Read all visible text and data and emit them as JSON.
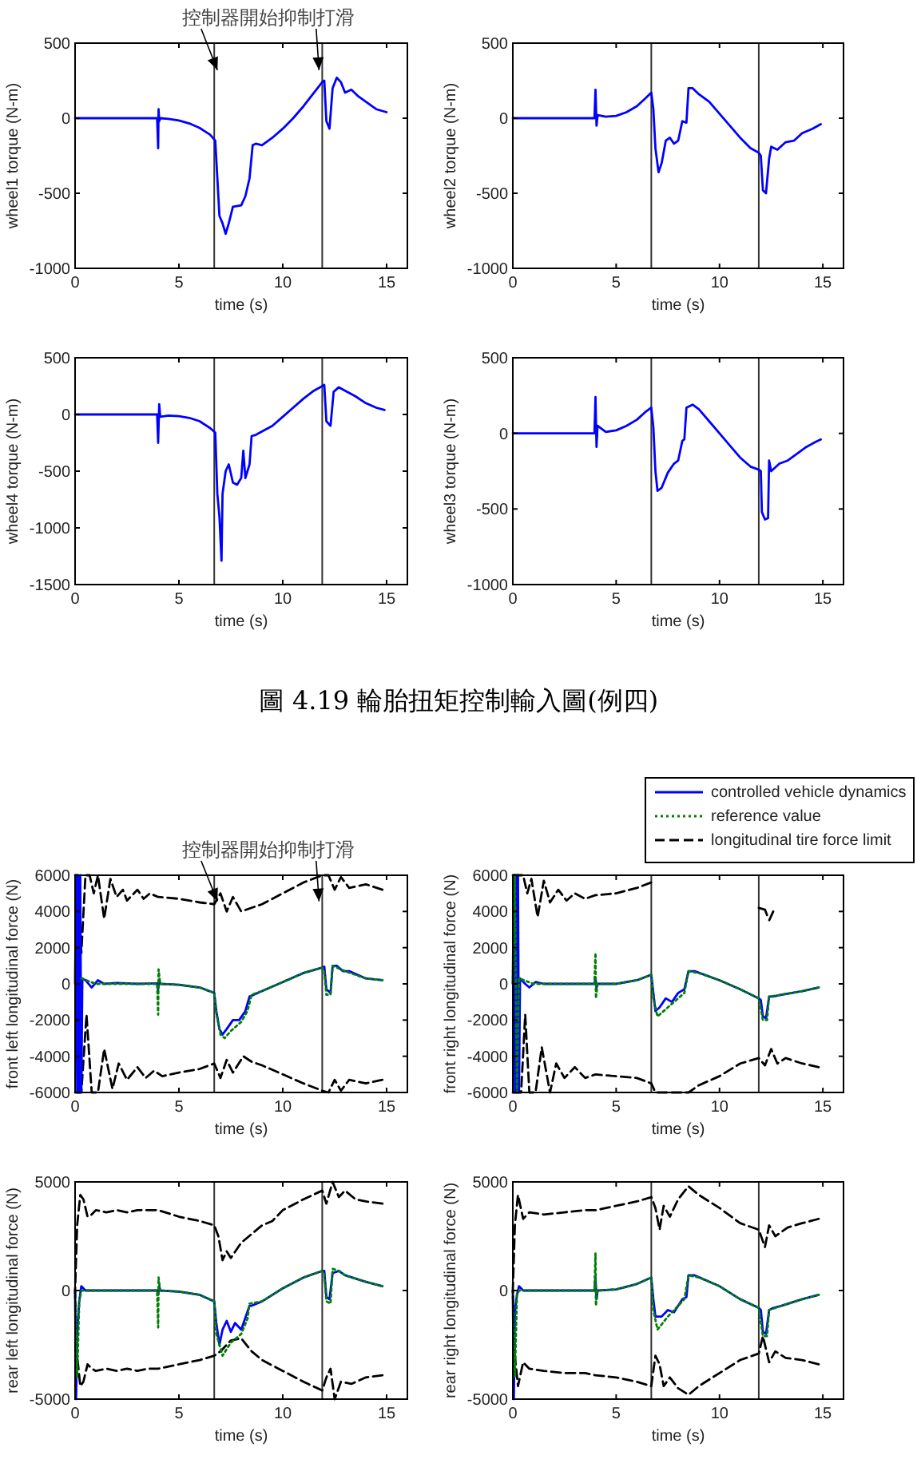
{
  "chart_data": [
    {
      "type": "line",
      "xlabel": "time (s)",
      "ylabel": "wheel1 torque (N-m)",
      "xlim": [
        0,
        16
      ],
      "ylim": [
        -1000,
        500
      ],
      "xticks": [
        0,
        5,
        10,
        15
      ],
      "yticks": [
        -1000,
        -500,
        0,
        500
      ],
      "ref_lines": [
        {
          "axis": "x",
          "value": 6.7,
          "color": "#333333"
        },
        {
          "axis": "x",
          "value": 11.9,
          "color": "#333333"
        }
      ],
      "annotations": [
        "控制器開始抑制打滑"
      ],
      "series": [
        {
          "color": "#0000ff",
          "x": [
            0,
            3.95,
            4.0,
            4.02,
            4.05,
            4.1,
            4.5,
            5,
            5.5,
            6,
            6.5,
            6.75,
            6.85,
            6.95,
            7.1,
            7.25,
            7.4,
            7.6,
            8,
            8.2,
            8.4,
            8.55,
            8.7,
            9,
            9.5,
            10,
            10.5,
            11,
            11.5,
            11.9,
            12.0,
            12.1,
            12.25,
            12.4,
            12.6,
            12.8,
            13,
            13.3,
            13.6,
            14,
            14.5,
            15
          ],
          "values": [
            0,
            0,
            -200,
            60,
            -20,
            0,
            -5,
            -15,
            -35,
            -65,
            -110,
            -150,
            -400,
            -650,
            -700,
            -770,
            -700,
            -590,
            -580,
            -520,
            -400,
            -180,
            -170,
            -180,
            -130,
            -70,
            0,
            80,
            170,
            240,
            250,
            -20,
            -70,
            200,
            270,
            240,
            170,
            190,
            150,
            110,
            60,
            40
          ]
        }
      ]
    },
    {
      "type": "line",
      "xlabel": "time (s)",
      "ylabel": "wheel2 torque (N-m)",
      "xlim": [
        0,
        16
      ],
      "ylim": [
        -1000,
        500
      ],
      "xticks": [
        0,
        5,
        10,
        15
      ],
      "yticks": [
        -1000,
        -500,
        0,
        500
      ],
      "ref_lines": [
        {
          "axis": "x",
          "value": 6.7,
          "color": "#333333"
        },
        {
          "axis": "x",
          "value": 11.9,
          "color": "#333333"
        }
      ],
      "series": [
        {
          "color": "#0000ff",
          "x": [
            0,
            3.95,
            4.0,
            4.05,
            4.1,
            4.5,
            5,
            5.5,
            6,
            6.4,
            6.7,
            6.8,
            6.9,
            7.05,
            7.2,
            7.4,
            7.6,
            7.8,
            8.0,
            8.2,
            8.4,
            8.5,
            8.7,
            9,
            9.5,
            10,
            10.5,
            11,
            11.5,
            11.9,
            12.0,
            12.1,
            12.25,
            12.4,
            12.5,
            12.8,
            13.2,
            13.6,
            14,
            14.5,
            14.9
          ],
          "values": [
            0,
            0,
            190,
            -50,
            20,
            10,
            15,
            40,
            80,
            130,
            170,
            60,
            -200,
            -360,
            -300,
            -150,
            -130,
            -170,
            -150,
            -20,
            -30,
            200,
            200,
            160,
            110,
            30,
            -50,
            -130,
            -200,
            -230,
            -250,
            -480,
            -500,
            -270,
            -190,
            -210,
            -160,
            -150,
            -100,
            -70,
            -40
          ]
        }
      ]
    },
    {
      "type": "line",
      "xlabel": "time (s)",
      "ylabel": "wheel4 torque (N-m)",
      "xlim": [
        0,
        16
      ],
      "ylim": [
        -1500,
        500
      ],
      "xticks": [
        0,
        5,
        10,
        15
      ],
      "yticks": [
        -1500,
        -1000,
        -500,
        0,
        500
      ],
      "ref_lines": [
        {
          "axis": "x",
          "value": 6.7,
          "color": "#333333"
        },
        {
          "axis": "x",
          "value": 11.9,
          "color": "#333333"
        }
      ],
      "series": [
        {
          "color": "#0000ff",
          "x": [
            0,
            3.95,
            4.0,
            4.05,
            4.1,
            4.5,
            5,
            5.5,
            6,
            6.5,
            6.75,
            6.85,
            6.95,
            7.05,
            7.1,
            7.25,
            7.4,
            7.6,
            7.8,
            8,
            8.1,
            8.2,
            8.4,
            8.5,
            8.7,
            9,
            9.5,
            10,
            10.5,
            11,
            11.5,
            11.9,
            12.0,
            12.1,
            12.3,
            12.45,
            12.7,
            13,
            13.5,
            14,
            14.5,
            14.9
          ],
          "values": [
            0,
            0,
            -250,
            90,
            -20,
            -10,
            -15,
            -30,
            -60,
            -120,
            -160,
            -700,
            -900,
            -1290,
            -700,
            -500,
            -440,
            -600,
            -620,
            -560,
            -320,
            -560,
            -440,
            -190,
            -180,
            -150,
            -100,
            -20,
            60,
            140,
            210,
            250,
            260,
            -60,
            -100,
            200,
            240,
            210,
            160,
            100,
            60,
            40
          ]
        }
      ]
    },
    {
      "type": "line",
      "xlabel": "time (s)",
      "ylabel": "wheel3 torque (N-m)",
      "xlim": [
        0,
        16
      ],
      "ylim": [
        -1000,
        500
      ],
      "xticks": [
        0,
        5,
        10,
        15
      ],
      "yticks": [
        -1000,
        -500,
        0,
        500
      ],
      "ref_lines": [
        {
          "axis": "x",
          "value": 6.7,
          "color": "#333333"
        },
        {
          "axis": "x",
          "value": 11.9,
          "color": "#333333"
        }
      ],
      "annotations": [
        "圖 4.19 輪胎扭矩控制輸入圖(例四)"
      ],
      "series": [
        {
          "color": "#0000ff",
          "x": [
            0,
            3.95,
            4.0,
            4.05,
            4.1,
            4.5,
            5,
            5.5,
            6,
            6.4,
            6.7,
            6.8,
            6.9,
            7.0,
            7.2,
            7.5,
            7.8,
            8.0,
            8.2,
            8.3,
            8.4,
            8.7,
            9,
            9.5,
            10,
            10.5,
            11,
            11.5,
            11.9,
            12.0,
            12.05,
            12.2,
            12.35,
            12.4,
            12.5,
            12.9,
            13.3,
            13.7,
            14.2,
            14.6,
            14.9
          ],
          "values": [
            0,
            0,
            240,
            -90,
            50,
            10,
            20,
            50,
            90,
            140,
            170,
            40,
            -250,
            -380,
            -360,
            -260,
            -200,
            -180,
            -50,
            -40,
            170,
            190,
            160,
            80,
            0,
            -80,
            -160,
            -220,
            -240,
            -250,
            -520,
            -570,
            -560,
            -180,
            -250,
            -200,
            -180,
            -140,
            -90,
            -60,
            -40
          ]
        }
      ]
    },
    {
      "type": "line",
      "xlabel": "time (s)",
      "ylabel": "front left longitudinal force (N)",
      "xlim": [
        0,
        16
      ],
      "ylim": [
        -6000,
        6000
      ],
      "xticks": [
        0,
        5,
        10,
        15
      ],
      "yticks": [
        -6000,
        -4000,
        -2000,
        0,
        2000,
        4000,
        6000
      ],
      "ref_lines": [
        {
          "axis": "x",
          "value": 6.7,
          "color": "#333333"
        },
        {
          "axis": "x",
          "value": 11.9,
          "color": "#333333"
        }
      ],
      "annotations": [
        "控制器開始抑制打滑"
      ],
      "series": [
        {
          "color": "#000000",
          "line_style": "dashed",
          "x": [
            0,
            0.1,
            0.3,
            0.5,
            0.7,
            0.9,
            1.1,
            1.4,
            1.7,
            2,
            2.3,
            2.5,
            3,
            3.3,
            3.6,
            4,
            5,
            6,
            6.7,
            7,
            7.3,
            7.6,
            8,
            8.5,
            9,
            10,
            11,
            11.9,
            12.2,
            12.5,
            12.8,
            13.2,
            14,
            14.8
          ],
          "values": [
            6000,
            6000,
            1700,
            6000,
            6000,
            5000,
            6000,
            3600,
            5800,
            4800,
            5200,
            4600,
            5200,
            4700,
            5000,
            4800,
            4700,
            4500,
            4400,
            5000,
            4000,
            4800,
            4000,
            4200,
            4400,
            5000,
            5600,
            6000,
            6000,
            5200,
            5900,
            5300,
            5500,
            5200
          ]
        },
        {
          "color": "#000000",
          "line_style": "dashed",
          "x": [
            0,
            0.3,
            0.55,
            0.8,
            1.1,
            1.4,
            1.8,
            2.1,
            2.5,
            3,
            3.4,
            3.8,
            4.2,
            5,
            6,
            6.7,
            7.0,
            7.3,
            7.6,
            8.1,
            8.5,
            9,
            10,
            11,
            11.9,
            12.2,
            12.5,
            12.8,
            13.2,
            14,
            14.8
          ],
          "values": [
            -6000,
            -6000,
            -1700,
            -6000,
            -6000,
            -3600,
            -5800,
            -4400,
            -5300,
            -4600,
            -5200,
            -4800,
            -5100,
            -4900,
            -4700,
            -4400,
            -5200,
            -4200,
            -4900,
            -4000,
            -4300,
            -4500,
            -5000,
            -5500,
            -5900,
            -6000,
            -5300,
            -5900,
            -5300,
            -5500,
            -5300
          ]
        },
        {
          "color": "#008000",
          "line_style": "dotted",
          "x": [
            0.3,
            1,
            3,
            3.95,
            4.0,
            4.02,
            4.1,
            5,
            6,
            6.7,
            6.8,
            7.0,
            7.2,
            7.5,
            8,
            8.3,
            8.5,
            9,
            10,
            11,
            11.9,
            12.0,
            12.1,
            12.3,
            12.4,
            12.6,
            13,
            14,
            14.8
          ],
          "values": [
            300,
            0,
            0,
            0,
            -1700,
            800,
            0,
            -50,
            -200,
            -500,
            -1600,
            -2800,
            -3000,
            -2600,
            -2100,
            -1500,
            -600,
            -400,
            100,
            600,
            900,
            700,
            -600,
            -600,
            1000,
            900,
            700,
            300,
            200
          ]
        },
        {
          "color": "#0000ff",
          "x": [
            0,
            0.05,
            0.1,
            0.15,
            0.2,
            0.25,
            0.3,
            0.35,
            0.5,
            0.8,
            1.1,
            1.4,
            2,
            3,
            3.95,
            4.0,
            4.05,
            4.1,
            5,
            6,
            6.7,
            6.8,
            6.95,
            7.1,
            7.3,
            7.6,
            7.9,
            8.2,
            8.4,
            8.6,
            9,
            10,
            11,
            11.9,
            12.0,
            12.1,
            12.3,
            12.4,
            12.6,
            12.9,
            13.2,
            14,
            14.8
          ],
          "values": [
            0,
            6000,
            -6000,
            6000,
            -6000,
            6000,
            -6000,
            300,
            200,
            -200,
            200,
            0,
            50,
            0,
            30,
            -300,
            200,
            0,
            -50,
            -200,
            -500,
            -1500,
            -2500,
            -2800,
            -2500,
            -2000,
            -2000,
            -1500,
            -700,
            -600,
            -400,
            100,
            600,
            900,
            950,
            -300,
            -500,
            1000,
            1000,
            700,
            700,
            300,
            200
          ]
        }
      ]
    },
    {
      "type": "line",
      "xlabel": "time (s)",
      "ylabel": "front right longitudinal force (N)",
      "xlim": [
        0,
        16
      ],
      "ylim": [
        -6000,
        6000
      ],
      "xticks": [
        0,
        5,
        10,
        15
      ],
      "yticks": [
        -6000,
        -4000,
        -2000,
        0,
        2000,
        4000,
        6000
      ],
      "legend": "top right",
      "ref_lines": [
        {
          "axis": "x",
          "value": 6.7,
          "color": "#333333"
        },
        {
          "axis": "x",
          "value": 11.9,
          "color": "#333333"
        }
      ],
      "series": [
        {
          "name": "controlled vehicle dynamics",
          "color": "#0000ff",
          "x": [
            0,
            0.05,
            0.1,
            0.15,
            0.2,
            0.25,
            0.3,
            0.35,
            0.6,
            0.8,
            1.1,
            1.5,
            3,
            3.95,
            4.0,
            4.05,
            4.1,
            5,
            6,
            6.7,
            6.8,
            6.9,
            7.1,
            7.4,
            7.7,
            8,
            8.3,
            8.5,
            8.8,
            10,
            11,
            11.9,
            12.0,
            12.1,
            12.25,
            12.4,
            12.6,
            13,
            14,
            14.8
          ],
          "values": [
            0,
            6000,
            -6000,
            6000,
            -6000,
            6000,
            -6000,
            300,
            0,
            -200,
            100,
            0,
            0,
            0,
            300,
            -200,
            0,
            0,
            200,
            500,
            -500,
            -1500,
            -1300,
            -800,
            -1000,
            -500,
            -300,
            700,
            700,
            200,
            -300,
            -800,
            -900,
            -1800,
            -1900,
            -700,
            -700,
            -600,
            -400,
            -200
          ]
        },
        {
          "name": "reference value",
          "color": "#008000",
          "line_style": "dotted",
          "x": [
            0,
            0.1,
            0.2,
            0.3,
            1,
            3.95,
            4.0,
            4.02,
            4.1,
            5,
            6,
            6.7,
            6.8,
            7.0,
            7.5,
            8,
            8.3,
            8.5,
            9,
            10,
            11,
            11.9,
            12.1,
            12.3,
            12.4,
            13,
            14,
            14.8
          ],
          "values": [
            0,
            6000,
            -6000,
            300,
            0,
            0,
            1700,
            -800,
            0,
            0,
            200,
            500,
            -800,
            -1800,
            -1300,
            -800,
            -500,
            700,
            600,
            200,
            -300,
            -800,
            -2000,
            -2000,
            -700,
            -600,
            -400,
            -200
          ]
        },
        {
          "name": "longitudinal tire force limit",
          "color": "#000000",
          "line_style": "dashed",
          "x": [
            0,
            0.3,
            0.5,
            0.7,
            0.9,
            1.2,
            1.5,
            1.8,
            2.2,
            2.6,
            3,
            3.5,
            4,
            5,
            6,
            6.7
          ],
          "values": [
            6000,
            6000,
            6000,
            5000,
            5800,
            3700,
            5700,
            4500,
            5200,
            4600,
            5000,
            4700,
            4900,
            5000,
            5300,
            5600
          ]
        },
        {
          "color": "#000000",
          "line_style": "dashed",
          "x": [
            11.9,
            12.2,
            12.4,
            12.6
          ],
          "values": [
            4200,
            4100,
            3500,
            4000
          ]
        },
        {
          "color": "#000000",
          "line_style": "dashed",
          "x": [
            0,
            0.4,
            0.6,
            0.8,
            1.1,
            1.4,
            1.8,
            2.1,
            2.5,
            3,
            3.5,
            4,
            5,
            6,
            6.7,
            6.9,
            8.5,
            9,
            10,
            11,
            11.9,
            12.2,
            12.5,
            12.8,
            13.2,
            14,
            14.8
          ],
          "values": [
            -6000,
            -6000,
            -1700,
            -6000,
            -6000,
            -3500,
            -6000,
            -4400,
            -5200,
            -4600,
            -5200,
            -5000,
            -5100,
            -5200,
            -5500,
            -6000,
            -6000,
            -5600,
            -5100,
            -4400,
            -4100,
            -4500,
            -3600,
            -4400,
            -4100,
            -4400,
            -4600
          ]
        }
      ]
    },
    {
      "type": "line",
      "xlabel": "time (s)",
      "ylabel": "rear left longitudinal force (N)",
      "xlim": [
        0,
        16
      ],
      "ylim": [
        -5000,
        5000
      ],
      "xticks": [
        0,
        5,
        10,
        15
      ],
      "yticks": [
        -5000,
        0,
        5000
      ],
      "ref_lines": [
        {
          "axis": "x",
          "value": 6.7,
          "color": "#333333"
        },
        {
          "axis": "x",
          "value": 11.9,
          "color": "#333333"
        }
      ],
      "series": [
        {
          "color": "#000000",
          "line_style": "dashed",
          "x": [
            14.8,
            14,
            13.5,
            13,
            12.7,
            12.4,
            12.1,
            11.9,
            11,
            10,
            9.5,
            9,
            8.5,
            8,
            7.5,
            7.3,
            7.1,
            6.9,
            6.7,
            6,
            5,
            4,
            3.5,
            3,
            2.5,
            2,
            1.5,
            1,
            0.8,
            0.6,
            0.4,
            0.25,
            0.1,
            0,
            0.1,
            0.25,
            0.4,
            0.6,
            0.8,
            1,
            1.5,
            2,
            2.5,
            3,
            3.5,
            4,
            5,
            6,
            6.7,
            7,
            7.5,
            8,
            8.5,
            9,
            10,
            11,
            11.9,
            12.1,
            12.3,
            12.5,
            12.8,
            13.3,
            14,
            14.8
          ],
          "values": [
            4000,
            4100,
            4200,
            4600,
            4300,
            5000,
            4000,
            4600,
            4200,
            3700,
            3200,
            3000,
            2600,
            2200,
            1500,
            1800,
            1400,
            2500,
            3000,
            3200,
            3400,
            3700,
            3700,
            3700,
            3600,
            3700,
            3600,
            3700,
            3500,
            3400,
            4200,
            4400,
            3000,
            0,
            -3000,
            -4400,
            -4200,
            -3400,
            -3600,
            -3700,
            -3600,
            -3700,
            -3600,
            -3700,
            -3600,
            -3600,
            -3400,
            -3200,
            -3000,
            -2800,
            -2300,
            -2200,
            -2800,
            -3200,
            -3700,
            -4200,
            -4600,
            -4000,
            -3600,
            -5000,
            -4200,
            -4300,
            -4000,
            -3900
          ]
        },
        {
          "color": "#008000",
          "line_style": "dotted",
          "x": [
            0,
            0.1,
            0.2,
            0.3,
            3.95,
            4.0,
            4.02,
            4.1,
            5,
            6,
            6.7,
            6.8,
            7.1,
            7.5,
            8,
            8.3,
            8.4,
            9,
            10,
            11,
            11.9,
            12.0,
            12.1,
            12.3,
            12.4,
            12.7,
            13,
            14,
            14.8
          ],
          "values": [
            0,
            -4000,
            -500,
            0,
            0,
            -1700,
            600,
            0,
            -50,
            -200,
            -500,
            -2000,
            -3000,
            -2400,
            -2000,
            -1300,
            -600,
            -500,
            100,
            600,
            900,
            800,
            -500,
            -600,
            1000,
            900,
            700,
            400,
            200
          ]
        },
        {
          "color": "#0000ff",
          "x": [
            0,
            0.05,
            0.1,
            0.2,
            0.3,
            0.5,
            3.95,
            4.0,
            4.05,
            4.1,
            5,
            6,
            6.7,
            6.8,
            6.95,
            7.1,
            7.3,
            7.5,
            7.7,
            8,
            8.4,
            8.5,
            9,
            10,
            11,
            11.9,
            12.0,
            12.1,
            12.25,
            12.4,
            12.7,
            13,
            14,
            14.8
          ],
          "values": [
            0,
            -5000,
            -2000,
            -500,
            200,
            0,
            0,
            -200,
            200,
            0,
            -50,
            -200,
            -500,
            -1500,
            -2500,
            -1800,
            -1400,
            -1900,
            -1500,
            -1800,
            -700,
            -700,
            -500,
            100,
            600,
            900,
            900,
            -300,
            -400,
            800,
            900,
            700,
            400,
            200
          ]
        }
      ]
    },
    {
      "type": "line",
      "xlabel": "time (s)",
      "ylabel": "rear right longitudinal force (N)",
      "xlim": [
        0,
        16
      ],
      "ylim": [
        -5000,
        5000
      ],
      "xticks": [
        0,
        5,
        10,
        15
      ],
      "yticks": [
        -5000,
        0,
        5000
      ],
      "ref_lines": [
        {
          "axis": "x",
          "value": 6.7,
          "color": "#333333"
        },
        {
          "axis": "x",
          "value": 11.9,
          "color": "#333333"
        }
      ],
      "series": [
        {
          "color": "#000000",
          "line_style": "dashed",
          "x": [
            14.8,
            14,
            13.3,
            12.7,
            12.4,
            12.2,
            11.9,
            11,
            10,
            9,
            8.5,
            8,
            7.6,
            7.3,
            7.1,
            6.9,
            6.7,
            6,
            5,
            4,
            3.5,
            2.5,
            1.5,
            0.8,
            0.5,
            0.25,
            0.1,
            0,
            0.1,
            0.25,
            0.5,
            0.8,
            1.5,
            2.5,
            3.5,
            4,
            5,
            6,
            6.7,
            6.9,
            7.1,
            7.3,
            7.6,
            8,
            8.5,
            9,
            10,
            11,
            11.9,
            12.1,
            12.4,
            12.7,
            13.2,
            14,
            14.8
          ],
          "values": [
            3300,
            3100,
            2900,
            2500,
            3000,
            2000,
            2800,
            3100,
            3800,
            4400,
            4800,
            4200,
            3400,
            3900,
            2800,
            3800,
            4300,
            4100,
            3900,
            3700,
            3700,
            3600,
            3500,
            3600,
            3300,
            4400,
            3000,
            0,
            -3000,
            -4400,
            -3300,
            -3600,
            -3700,
            -3800,
            -3800,
            -3900,
            -4000,
            -4200,
            -4400,
            -3000,
            -3400,
            -4400,
            -4000,
            -4500,
            -4800,
            -4400,
            -3800,
            -3200,
            -2900,
            -2100,
            -3300,
            -2800,
            -3100,
            -3200,
            -3400
          ]
        },
        {
          "color": "#008000",
          "line_style": "dotted",
          "x": [
            0,
            0.1,
            0.2,
            0.3,
            3.95,
            4.0,
            4.02,
            4.1,
            5,
            6,
            6.7,
            6.8,
            7.0,
            7.5,
            8,
            8.3,
            8.5,
            9,
            10,
            11,
            11.9,
            12.1,
            12.3,
            12.4,
            13,
            14,
            14.8
          ],
          "values": [
            0,
            -4000,
            -200,
            0,
            0,
            1700,
            -700,
            0,
            50,
            300,
            600,
            -900,
            -1800,
            -1200,
            -700,
            -400,
            700,
            600,
            200,
            -400,
            -800,
            -2100,
            -2100,
            -900,
            -700,
            -400,
            -200
          ]
        },
        {
          "color": "#0000ff",
          "x": [
            0,
            0.05,
            0.1,
            0.2,
            0.3,
            0.5,
            3.95,
            4.0,
            4.05,
            4.1,
            5,
            6,
            6.7,
            6.8,
            6.9,
            7.2,
            7.5,
            7.8,
            8.2,
            8.4,
            8.5,
            8.8,
            10,
            11,
            11.9,
            12.0,
            12.1,
            12.25,
            12.4,
            12.6,
            13,
            14,
            14.8
          ],
          "values": [
            0,
            -5000,
            -1000,
            -200,
            200,
            0,
            0,
            600,
            -400,
            0,
            50,
            300,
            600,
            -400,
            -1200,
            -1200,
            -900,
            -1000,
            -400,
            -300,
            700,
            700,
            200,
            -400,
            -800,
            -900,
            -1900,
            -2000,
            -900,
            -800,
            -700,
            -400,
            -200
          ]
        }
      ]
    }
  ]
}
